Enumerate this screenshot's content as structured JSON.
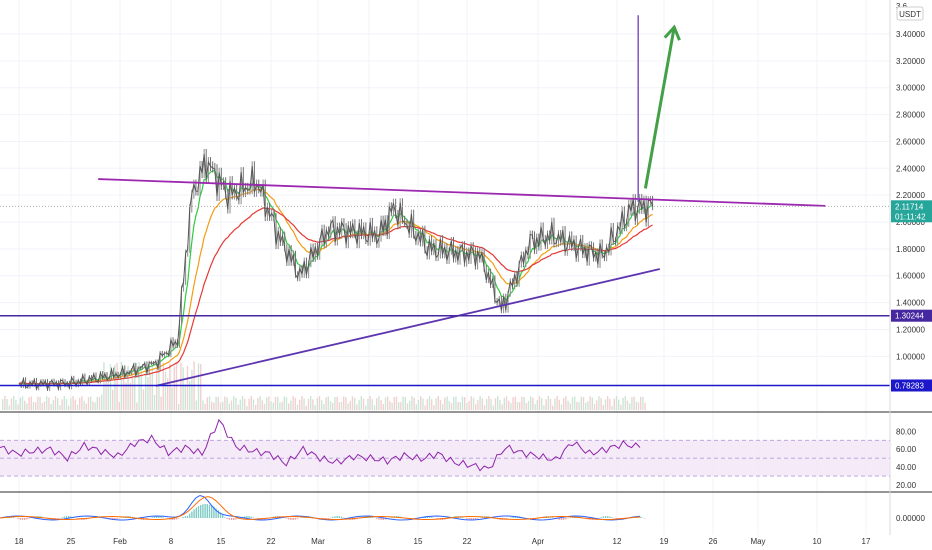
{
  "chart_data": {
    "type": "line",
    "currency_badge": "USDT",
    "price_axis": {
      "ticks": [
        "3.40000",
        "3.20000",
        "3.00000",
        "2.80000",
        "2.60000",
        "2.40000",
        "2.20000",
        "2.00000",
        "1.80000",
        "1.60000",
        "1.40000",
        "1.20000",
        "1.00000"
      ],
      "tick_values": [
        3.4,
        3.2,
        3.0,
        2.8,
        2.6,
        2.4,
        2.2,
        2.0,
        1.8,
        1.6,
        1.4,
        1.2,
        1.0
      ],
      "range": [
        0.78,
        3.5
      ],
      "top_partial_label": "3.6"
    },
    "date_axis": {
      "labels": [
        "18",
        "25",
        "Feb",
        "8",
        "15",
        "22",
        "Mar",
        "8",
        "15",
        "22",
        "Apr",
        "12",
        "19",
        "26",
        "May",
        "10",
        "17"
      ],
      "grid": true
    },
    "price_tags": [
      {
        "value": 2.11714,
        "text": "2.11714",
        "countdown": "01:11:42",
        "color": "#26a69a"
      },
      {
        "value": 1.30244,
        "text": "1.30244",
        "color": "#4527a0"
      },
      {
        "value": 0.78283,
        "text": "0.78283",
        "color": "#1c18c9"
      }
    ],
    "price_series_approx": [
      {
        "date": "Jan 18",
        "close": 0.79
      },
      {
        "date": "Jan 25",
        "close": 0.8
      },
      {
        "date": "Feb 1",
        "close": 0.88
      },
      {
        "date": "Feb 5",
        "close": 0.95
      },
      {
        "date": "Feb 8",
        "close": 1.12
      },
      {
        "date": "Feb 10",
        "close": 2.2
      },
      {
        "date": "Feb 12",
        "close": 2.45
      },
      {
        "date": "Feb 15",
        "close": 2.2
      },
      {
        "date": "Feb 19",
        "close": 2.3
      },
      {
        "date": "Feb 22",
        "close": 1.9
      },
      {
        "date": "Feb 25",
        "close": 1.6
      },
      {
        "date": "Mar 1",
        "close": 1.95
      },
      {
        "date": "Mar 8",
        "close": 1.9
      },
      {
        "date": "Mar 10",
        "close": 2.1
      },
      {
        "date": "Mar 15",
        "close": 1.8
      },
      {
        "date": "Mar 22",
        "close": 1.75
      },
      {
        "date": "Mar 25",
        "close": 1.35
      },
      {
        "date": "Mar 29",
        "close": 1.85
      },
      {
        "date": "Apr 1",
        "close": 1.9
      },
      {
        "date": "Apr 5",
        "close": 1.8
      },
      {
        "date": "Apr 8",
        "close": 1.75
      },
      {
        "date": "Apr 12",
        "close": 2.1
      },
      {
        "date": "Apr 15",
        "close": 2.12
      }
    ],
    "annotations": [
      {
        "type": "descending resistance line",
        "start": {
          "date": "Jan 29",
          "value": 2.32
        },
        "end": {
          "date": "May 9",
          "value": 2.12
        },
        "color": "#9c27b0"
      },
      {
        "type": "ascending support line",
        "start": {
          "date": "Feb 5",
          "value": 0.78
        },
        "end": {
          "date": "Apr 16",
          "value": 1.65
        },
        "color": "#5e35b1"
      },
      {
        "type": "horizontal support",
        "value": 1.30244,
        "color": "#4527a0"
      },
      {
        "type": "horizontal support",
        "value": 0.78283,
        "color": "#1c18c9"
      },
      {
        "type": "vertical wick",
        "date": "Apr 13",
        "from": 2.15,
        "to": 3.54,
        "color": "#7e57c2"
      },
      {
        "type": "up arrow",
        "from": {
          "date": "Apr 14",
          "value": 2.25
        },
        "to": {
          "date": "Apr 18",
          "value": 3.45
        },
        "color": "#43a047"
      }
    ],
    "rsi": {
      "ticks": [
        "80.00",
        "60.00",
        "40.00",
        "20.00"
      ],
      "tick_values": [
        80,
        60,
        40,
        20
      ],
      "band": [
        30,
        70
      ],
      "series_approx": [
        62,
        55,
        58,
        60,
        50,
        64,
        58,
        52,
        67,
        72,
        56,
        62,
        55,
        92,
        63,
        58,
        55,
        44,
        60,
        50,
        45,
        52,
        50,
        47,
        53,
        49,
        55,
        45,
        42,
        38,
        62,
        56,
        52,
        48,
        68,
        55,
        60,
        66,
        62
      ]
    },
    "macd": {
      "ticks": [
        "0.00000"
      ],
      "tick_values": [
        0
      ]
    }
  }
}
